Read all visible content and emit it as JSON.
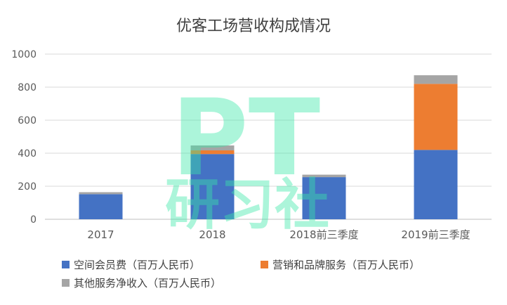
{
  "chart_data": {
    "type": "bar",
    "stacked": true,
    "title": "优客工场营收构成情况",
    "categories": [
      "2017",
      "2018",
      "2018前三季度",
      "2019前三季度"
    ],
    "series": [
      {
        "name": "空间会员费（百万人民币）",
        "color": "#4472c4",
        "values": [
          152,
          395,
          255,
          420
        ]
      },
      {
        "name": "营销和品牌服务（百万人民币）",
        "color": "#ed7d31",
        "values": [
          0,
          22,
          0,
          400
        ]
      },
      {
        "name": "其他服务净收入（百万人民币）",
        "color": "#a5a5a5",
        "values": [
          12,
          30,
          15,
          52
        ]
      }
    ],
    "ylim": [
      0,
      1000
    ],
    "yticks": [
      "0",
      "200",
      "400",
      "600",
      "800",
      "1000"
    ],
    "ytick_values": [
      0,
      200,
      400,
      600,
      800,
      1000
    ],
    "grid": true,
    "legend_position": "bottom"
  },
  "watermark": {
    "big": "PT",
    "small": "研习社",
    "color": "#39e6a6"
  }
}
